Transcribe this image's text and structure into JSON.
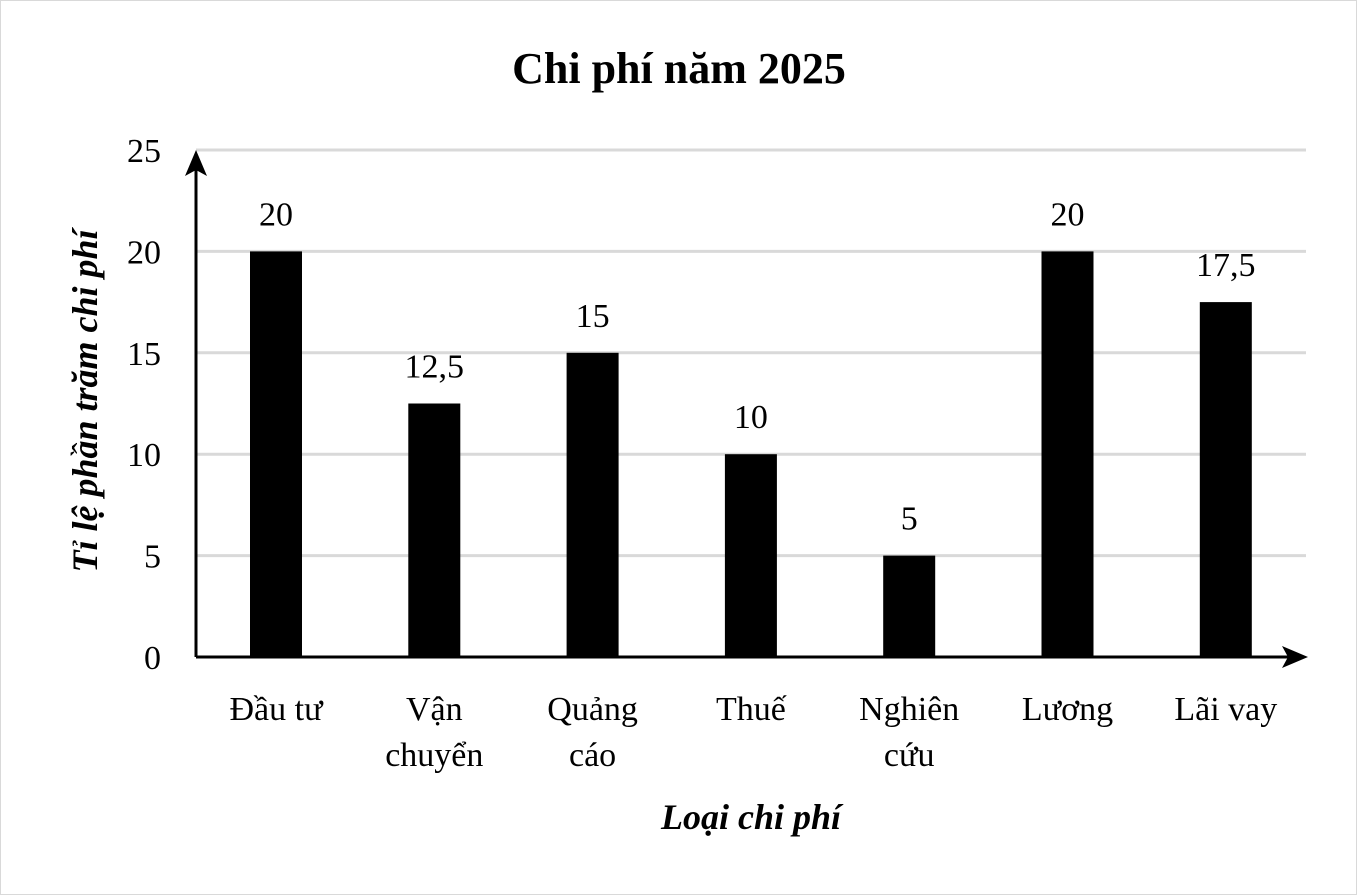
{
  "chart_data": {
    "type": "bar",
    "title": "Chi phí năm 2025",
    "xlabel": "Loại chi phí",
    "ylabel": "Tỉ lệ phần trăm chi phí",
    "categories": [
      [
        "Đầu tư"
      ],
      [
        "Vận",
        "chuyển"
      ],
      [
        "Quảng",
        "cáo"
      ],
      [
        "Thuế"
      ],
      [
        "Nghiên",
        "cứu"
      ],
      [
        "Lương"
      ],
      [
        "Lãi vay"
      ]
    ],
    "values": [
      20,
      12.5,
      15,
      10,
      5,
      20,
      17.5
    ],
    "data_labels": [
      "20",
      "12,5",
      "15",
      "10",
      "5",
      "20",
      "17,5"
    ],
    "yticks": [
      "0",
      "5",
      "10",
      "15",
      "20",
      "25"
    ],
    "ylim": [
      0,
      25
    ],
    "grid": true,
    "legend": "none",
    "colors": {
      "bar": "#000000",
      "grid": "#d9d9d9",
      "axis": "#000000"
    }
  }
}
